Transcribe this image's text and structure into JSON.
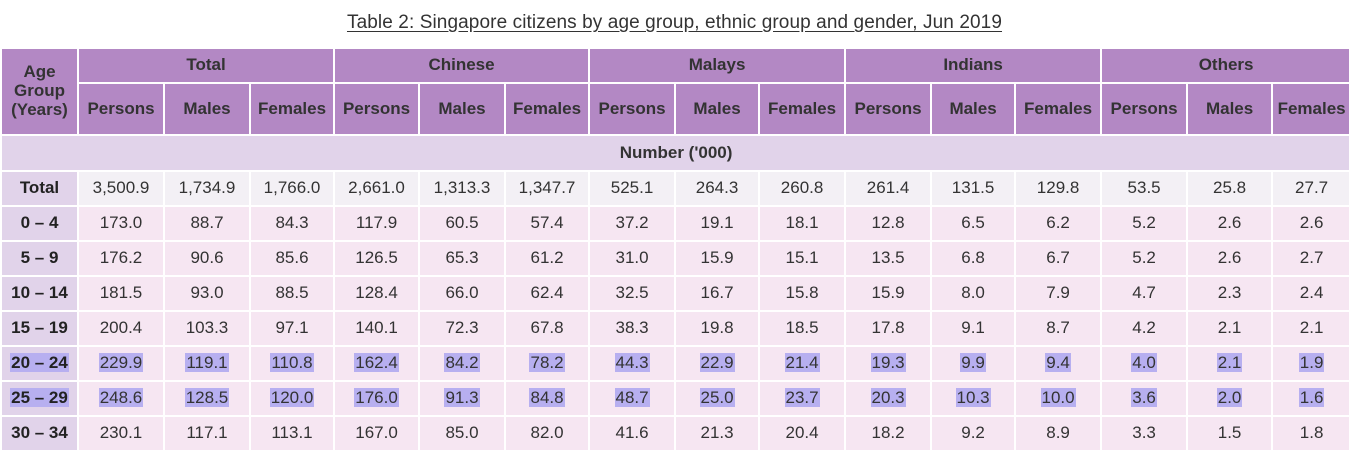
{
  "title": "Table 2: Singapore citizens by age group, ethnic group and gender, Jun 2019",
  "header": {
    "age_group": "Age Group (Years)",
    "groups": [
      "Total",
      "Chinese",
      "Malays",
      "Indians",
      "Others"
    ],
    "sub": [
      "Persons",
      "Males",
      "Females"
    ]
  },
  "unit_label": "Number ('000)",
  "rows": [
    {
      "label": "Total",
      "values": [
        "3,500.9",
        "1,734.9",
        "1,766.0",
        "2,661.0",
        "1,313.3",
        "1,347.7",
        "525.1",
        "264.3",
        "260.8",
        "261.4",
        "131.5",
        "129.8",
        "53.5",
        "25.8",
        "27.7"
      ],
      "highlighted": false
    },
    {
      "label": "0 – 4",
      "values": [
        "173.0",
        "88.7",
        "84.3",
        "117.9",
        "60.5",
        "57.4",
        "37.2",
        "19.1",
        "18.1",
        "12.8",
        "6.5",
        "6.2",
        "5.2",
        "2.6",
        "2.6"
      ],
      "highlighted": false
    },
    {
      "label": "5 – 9",
      "values": [
        "176.2",
        "90.6",
        "85.6",
        "126.5",
        "65.3",
        "61.2",
        "31.0",
        "15.9",
        "15.1",
        "13.5",
        "6.8",
        "6.7",
        "5.2",
        "2.6",
        "2.7"
      ],
      "highlighted": false
    },
    {
      "label": "10 – 14",
      "values": [
        "181.5",
        "93.0",
        "88.5",
        "128.4",
        "66.0",
        "62.4",
        "32.5",
        "16.7",
        "15.8",
        "15.9",
        "8.0",
        "7.9",
        "4.7",
        "2.3",
        "2.4"
      ],
      "highlighted": false
    },
    {
      "label": "15 – 19",
      "values": [
        "200.4",
        "103.3",
        "97.1",
        "140.1",
        "72.3",
        "67.8",
        "38.3",
        "19.8",
        "18.5",
        "17.8",
        "9.1",
        "8.7",
        "4.2",
        "2.1",
        "2.1"
      ],
      "highlighted": false
    },
    {
      "label": "20 – 24",
      "values": [
        "229.9",
        "119.1",
        "110.8",
        "162.4",
        "84.2",
        "78.2",
        "44.3",
        "22.9",
        "21.4",
        "19.3",
        "9.9",
        "9.4",
        "4.0",
        "2.1",
        "1.9"
      ],
      "highlighted": true
    },
    {
      "label": "25 – 29",
      "values": [
        "248.6",
        "128.5",
        "120.0",
        "176.0",
        "91.3",
        "84.8",
        "48.7",
        "25.0",
        "23.7",
        "20.3",
        "10.3",
        "10.0",
        "3.6",
        "2.0",
        "1.6"
      ],
      "highlighted": true
    },
    {
      "label": "30 – 34",
      "values": [
        "230.1",
        "117.1",
        "113.1",
        "167.0",
        "85.0",
        "82.0",
        "41.6",
        "21.3",
        "20.4",
        "18.2",
        "9.2",
        "8.9",
        "3.3",
        "1.5",
        "1.8"
      ],
      "highlighted": false
    }
  ]
}
